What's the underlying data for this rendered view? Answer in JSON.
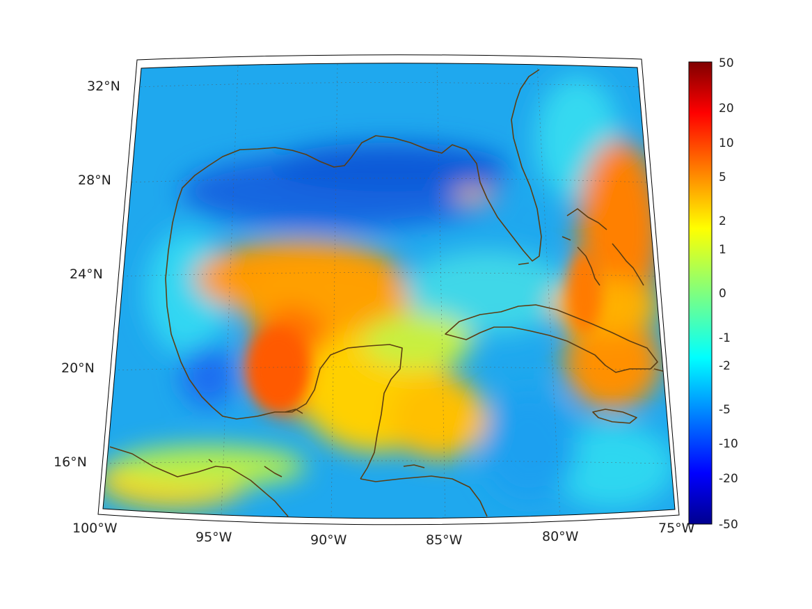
{
  "map": {
    "region": "Gulf of Mexico and Caribbean",
    "lon_range": [
      -100,
      -75
    ],
    "lat_range": [
      14,
      32
    ],
    "grid": true,
    "lon_ticks": [
      "100°W",
      "95°W",
      "90°W",
      "85°W",
      "80°W",
      "75°W"
    ],
    "lat_ticks": [
      "32°N",
      "28°N",
      "24°N",
      "20°N",
      "16°N"
    ],
    "coastline_color": "#5c3d12"
  },
  "colorbar": {
    "labels": [
      "50",
      "20",
      "10",
      "5",
      "2",
      "1",
      "0",
      "-1",
      "-2",
      "-5",
      "-10",
      "-20",
      "-50"
    ],
    "colormap": "jet",
    "colors": {
      "max": "#800000",
      "high": "#ff2000",
      "mid_high": "#ffb000",
      "zero": "#7fff7f",
      "mid_low": "#00c0ff",
      "low": "#0020ff",
      "min": "#000080"
    }
  }
}
